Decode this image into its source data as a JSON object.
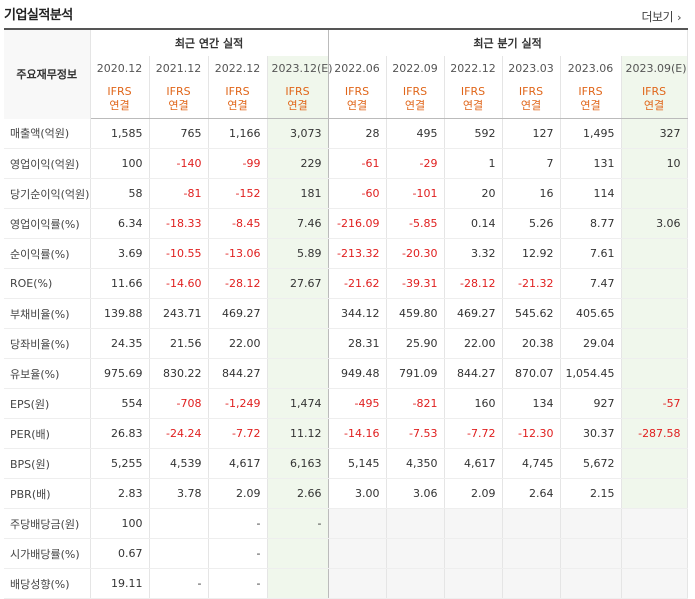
{
  "title": "기업실적분석",
  "more_label": "더보기",
  "more_icon": "chevron-right-icon",
  "header": {
    "label_col": "주요재무정보",
    "annual_group": "최근 연간 실적",
    "quarter_group": "최근 분기 실적",
    "annual_periods": [
      "2020.12",
      "2021.12",
      "2022.12",
      "2023.12(E)"
    ],
    "quarter_periods": [
      "2022.06",
      "2022.09",
      "2022.12",
      "2023.03",
      "2023.06",
      "2023.09(E)"
    ],
    "ifrs": "IFRS",
    "basis": "연결"
  },
  "rows": [
    {
      "label": "매출액(억원)",
      "annual": [
        "1,585",
        "765",
        "1,166",
        "3,073"
      ],
      "quarter": [
        "28",
        "495",
        "592",
        "127",
        "1,495",
        "327"
      ]
    },
    {
      "label": "영업이익(억원)",
      "annual": [
        "100",
        "-140",
        "-99",
        "229"
      ],
      "quarter": [
        "-61",
        "-29",
        "1",
        "7",
        "131",
        "10"
      ]
    },
    {
      "label": "당기순이익(억원)",
      "annual": [
        "58",
        "-81",
        "-152",
        "181"
      ],
      "quarter": [
        "-60",
        "-101",
        "20",
        "16",
        "114",
        ""
      ]
    },
    {
      "label": "영업이익률(%)",
      "annual": [
        "6.34",
        "-18.33",
        "-8.45",
        "7.46"
      ],
      "quarter": [
        "-216.09",
        "-5.85",
        "0.14",
        "5.26",
        "8.77",
        "3.06"
      ]
    },
    {
      "label": "순이익률(%)",
      "annual": [
        "3.69",
        "-10.55",
        "-13.06",
        "5.89"
      ],
      "quarter": [
        "-213.32",
        "-20.30",
        "3.32",
        "12.92",
        "7.61",
        ""
      ]
    },
    {
      "label": "ROE(%)",
      "annual": [
        "11.66",
        "-14.60",
        "-28.12",
        "27.67"
      ],
      "quarter": [
        "-21.62",
        "-39.31",
        "-28.12",
        "-21.32",
        "7.47",
        ""
      ]
    },
    {
      "label": "부채비율(%)",
      "annual": [
        "139.88",
        "243.71",
        "469.27",
        ""
      ],
      "quarter": [
        "344.12",
        "459.80",
        "469.27",
        "545.62",
        "405.65",
        ""
      ]
    },
    {
      "label": "당좌비율(%)",
      "annual": [
        "24.35",
        "21.56",
        "22.00",
        ""
      ],
      "quarter": [
        "28.31",
        "25.90",
        "22.00",
        "20.38",
        "29.04",
        ""
      ]
    },
    {
      "label": "유보율(%)",
      "annual": [
        "975.69",
        "830.22",
        "844.27",
        ""
      ],
      "quarter": [
        "949.48",
        "791.09",
        "844.27",
        "870.07",
        "1,054.45",
        ""
      ]
    },
    {
      "label": "EPS(원)",
      "annual": [
        "554",
        "-708",
        "-1,249",
        "1,474"
      ],
      "quarter": [
        "-495",
        "-821",
        "160",
        "134",
        "927",
        "-57"
      ]
    },
    {
      "label": "PER(배)",
      "annual": [
        "26.83",
        "-24.24",
        "-7.72",
        "11.12"
      ],
      "quarter": [
        "-14.16",
        "-7.53",
        "-7.72",
        "-12.30",
        "30.37",
        "-287.58"
      ]
    },
    {
      "label": "BPS(원)",
      "annual": [
        "5,255",
        "4,539",
        "4,617",
        "6,163"
      ],
      "quarter": [
        "5,145",
        "4,350",
        "4,617",
        "4,745",
        "5,672",
        ""
      ]
    },
    {
      "label": "PBR(배)",
      "annual": [
        "2.83",
        "3.78",
        "2.09",
        "2.66"
      ],
      "quarter": [
        "3.00",
        "3.06",
        "2.09",
        "2.64",
        "2.15",
        ""
      ]
    },
    {
      "label": "주당배당금(원)",
      "annual": [
        "100",
        "",
        "-",
        "-"
      ],
      "quarter": [
        "",
        "",
        "",
        "",
        "",
        ""
      ]
    },
    {
      "label": "시가배당률(%)",
      "annual": [
        "0.67",
        "",
        "-",
        ""
      ],
      "quarter": [
        "",
        "",
        "",
        "",
        "",
        ""
      ]
    },
    {
      "label": "배당성향(%)",
      "annual": [
        "19.11",
        "-",
        "-",
        ""
      ],
      "quarter": [
        "",
        "",
        "",
        "",
        "",
        ""
      ]
    }
  ],
  "colors": {
    "negative": "#e02020",
    "ifrs": "#e0661a",
    "estimate_bg": "#f0f7ec"
  }
}
